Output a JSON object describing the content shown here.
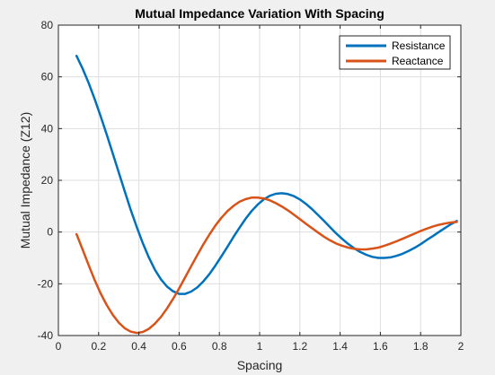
{
  "chart_data": {
    "type": "line",
    "title": "Mutual Impedance Variation With Spacing",
    "xlabel": "Spacing",
    "ylabel": "Mutual Impedance (Z12)",
    "xlim": [
      0,
      2
    ],
    "ylim": [
      -40,
      80
    ],
    "xticks": [
      0,
      0.2,
      0.4,
      0.6,
      0.8,
      1,
      1.2,
      1.4,
      1.6,
      1.8,
      2
    ],
    "xtick_labels": [
      "0",
      "0.2",
      "0.4",
      "0.6",
      "0.8",
      "1",
      "1.2",
      "1.4",
      "1.6",
      "1.8",
      "2"
    ],
    "yticks": [
      -40,
      -20,
      0,
      20,
      40,
      60,
      80
    ],
    "ytick_labels": [
      "-40",
      "-20",
      "0",
      "20",
      "40",
      "60",
      "80"
    ],
    "grid": true,
    "legend_position": "top-right",
    "series": [
      {
        "name": "Resistance",
        "color": "#0072bd",
        "x": [
          0.09,
          0.12,
          0.15,
          0.18,
          0.21,
          0.24,
          0.27,
          0.3,
          0.33,
          0.36,
          0.39,
          0.42,
          0.45,
          0.48,
          0.51,
          0.54,
          0.57,
          0.6,
          0.63,
          0.66,
          0.69,
          0.72,
          0.75,
          0.78,
          0.81,
          0.84,
          0.87,
          0.9,
          0.93,
          0.96,
          0.99,
          1.02,
          1.05,
          1.08,
          1.11,
          1.14,
          1.17,
          1.2,
          1.23,
          1.26,
          1.29,
          1.32,
          1.35,
          1.38,
          1.41,
          1.44,
          1.47,
          1.5,
          1.53,
          1.56,
          1.59,
          1.62,
          1.65,
          1.68,
          1.71,
          1.74,
          1.77,
          1.8,
          1.83,
          1.86,
          1.89,
          1.92,
          1.95,
          1.98
        ],
        "y": [
          68.1,
          63.2,
          57.7,
          51.5,
          44.8,
          37.7,
          30.4,
          23.0,
          15.7,
          8.5,
          1.8,
          -4.4,
          -9.9,
          -14.6,
          -18.3,
          -21.1,
          -22.9,
          -23.9,
          -23.9,
          -23.0,
          -21.4,
          -19.1,
          -16.3,
          -13.0,
          -9.4,
          -5.7,
          -1.9,
          1.7,
          5.1,
          8.1,
          10.6,
          12.6,
          14.0,
          14.8,
          15.0,
          14.7,
          13.9,
          12.6,
          10.9,
          8.9,
          6.6,
          4.3,
          1.9,
          -0.5,
          -2.6,
          -4.6,
          -6.3,
          -7.7,
          -8.8,
          -9.6,
          -10.0,
          -10.0,
          -9.8,
          -9.2,
          -8.4,
          -7.3,
          -6.1,
          -4.7,
          -3.1,
          -1.6,
          0.0,
          1.5,
          3.0,
          4.3
        ]
      },
      {
        "name": "Reactance",
        "color": "#d95319",
        "x": [
          0.09,
          0.12,
          0.15,
          0.18,
          0.21,
          0.24,
          0.27,
          0.3,
          0.33,
          0.36,
          0.39,
          0.42,
          0.45,
          0.48,
          0.51,
          0.54,
          0.57,
          0.6,
          0.63,
          0.66,
          0.69,
          0.72,
          0.75,
          0.78,
          0.81,
          0.84,
          0.87,
          0.9,
          0.93,
          0.96,
          0.99,
          1.02,
          1.05,
          1.08,
          1.11,
          1.14,
          1.17,
          1.2,
          1.23,
          1.26,
          1.29,
          1.32,
          1.35,
          1.38,
          1.41,
          1.44,
          1.47,
          1.5,
          1.53,
          1.56,
          1.59,
          1.62,
          1.65,
          1.68,
          1.71,
          1.74,
          1.77,
          1.8,
          1.83,
          1.86,
          1.89,
          1.92,
          1.95,
          1.98
        ],
        "y": [
          -0.8,
          -6.7,
          -12.7,
          -18.5,
          -23.7,
          -28.2,
          -32.0,
          -35.0,
          -37.2,
          -38.5,
          -39.0,
          -38.6,
          -37.4,
          -35.4,
          -32.8,
          -29.5,
          -25.8,
          -21.8,
          -17.5,
          -13.2,
          -8.9,
          -4.8,
          -1.0,
          2.5,
          5.5,
          8.1,
          10.1,
          11.7,
          12.7,
          13.3,
          13.3,
          13.0,
          12.3,
          11.2,
          9.9,
          8.4,
          6.7,
          5.0,
          3.2,
          1.5,
          -0.2,
          -1.8,
          -3.2,
          -4.4,
          -5.3,
          -6.0,
          -6.5,
          -6.7,
          -6.7,
          -6.4,
          -6.0,
          -5.3,
          -4.5,
          -3.6,
          -2.6,
          -1.6,
          -0.6,
          0.4,
          1.3,
          2.1,
          2.8,
          3.3,
          3.7,
          3.9
        ]
      }
    ]
  }
}
